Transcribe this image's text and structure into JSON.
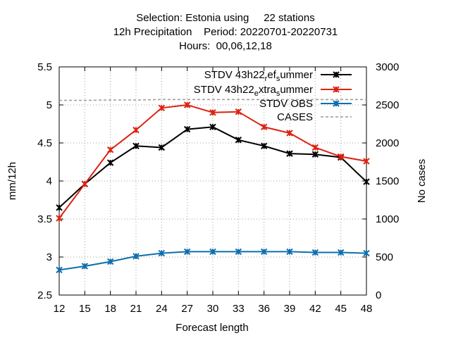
{
  "title_lines": [
    "Selection: Estonia using     22 stations",
    "12h Precipitation    Period: 20220701-20220731",
    "Hours:  00,06,12,18"
  ],
  "chart_data": {
    "type": "line",
    "xlabel": "Forecast length",
    "ylabel": "mm/12h",
    "y2label": "No cases",
    "x": [
      12,
      15,
      18,
      21,
      24,
      27,
      30,
      33,
      36,
      39,
      42,
      45,
      48
    ],
    "xlim": [
      12,
      48
    ],
    "ylim": [
      2.5,
      5.5
    ],
    "y2lim": [
      0,
      3000
    ],
    "yticks": [
      "2.5",
      "3",
      "3.5",
      "4",
      "4.5",
      "5",
      "5.5"
    ],
    "y2ticks": [
      "0",
      "500",
      "1000",
      "1500",
      "2000",
      "2500",
      "3000"
    ],
    "grid": true,
    "legend_position": "top-right",
    "series": [
      {
        "name": "STDV 43h22_ref_summer",
        "color": "#000000",
        "marker": "star",
        "axis": "y",
        "values": [
          3.65,
          3.96,
          4.24,
          4.46,
          4.44,
          4.68,
          4.71,
          4.54,
          4.46,
          4.36,
          4.35,
          4.31,
          3.99
        ]
      },
      {
        "name": "STDV 43h22_extra_summer",
        "color": "#dd2211",
        "marker": "star",
        "axis": "y",
        "values": [
          3.51,
          3.96,
          4.41,
          4.67,
          4.96,
          5.0,
          4.9,
          4.91,
          4.71,
          4.63,
          4.44,
          4.32,
          4.26
        ]
      },
      {
        "name": "STDV OBS",
        "color": "#0e6fae",
        "marker": "star",
        "axis": "y",
        "values": [
          2.83,
          2.88,
          2.94,
          3.01,
          3.05,
          3.07,
          3.07,
          3.07,
          3.07,
          3.07,
          3.06,
          3.06,
          3.05
        ]
      },
      {
        "name": "CASES",
        "color": "#999999",
        "marker": "none",
        "dashed": true,
        "axis": "y2",
        "values": [
          2560,
          2560,
          2565,
          2565,
          2570,
          2570,
          2570,
          2570,
          2570,
          2570,
          2570,
          2570,
          2570
        ]
      }
    ],
    "legend_labels": [
      {
        "main": "STDV 43h22",
        "sub1": "r",
        "mid": "ef",
        "sub2": "s",
        "tail": "ummer"
      },
      {
        "main": "STDV 43h22",
        "sub1": "e",
        "mid": "xtra",
        "sub2": "s",
        "tail": "ummer"
      },
      {
        "main": "STDV OBS"
      },
      {
        "main": "CASES"
      }
    ]
  }
}
